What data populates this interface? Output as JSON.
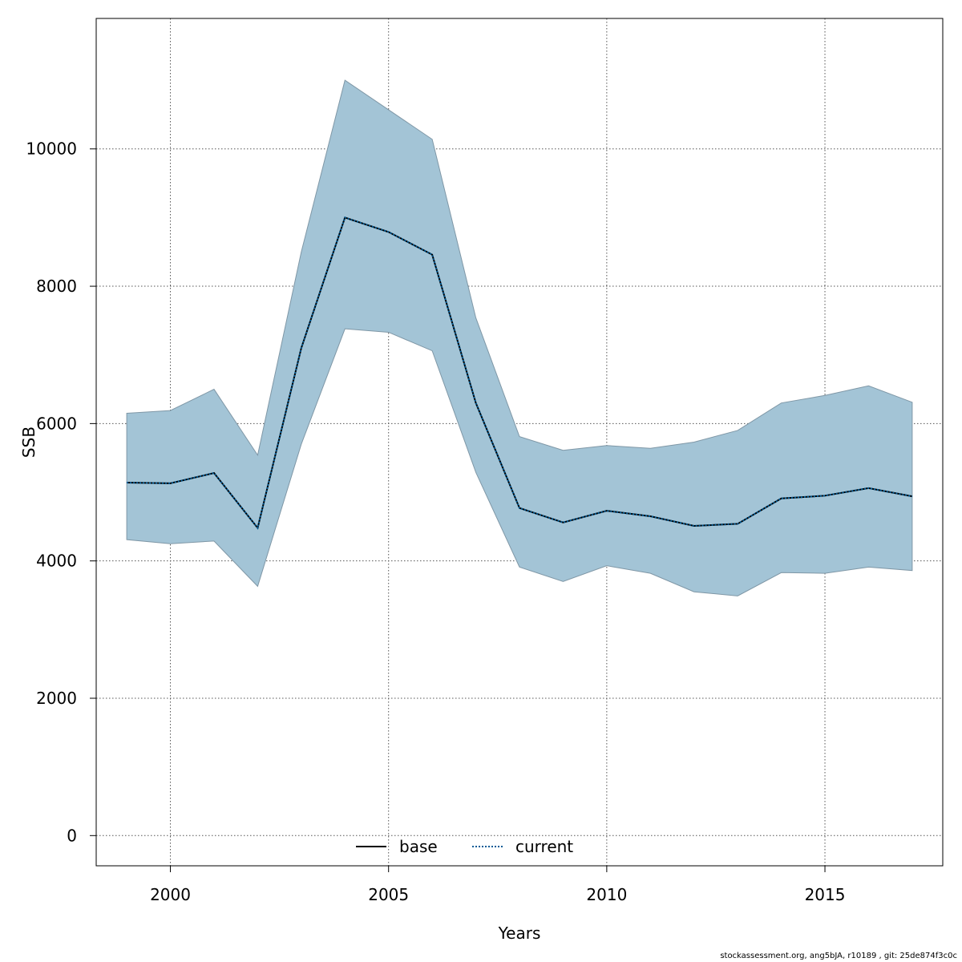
{
  "chart_data": {
    "type": "area",
    "xlabel": "Years",
    "ylabel": "SSB",
    "xlim": [
      1998.3,
      2017.7
    ],
    "ylim": [
      -440,
      11900
    ],
    "x_ticks": [
      2000,
      2005,
      2010,
      2015
    ],
    "y_ticks": [
      0,
      2000,
      4000,
      6000,
      8000,
      10000
    ],
    "grid": true,
    "legend_position": "bottom-center",
    "x": [
      1999,
      2000,
      2001,
      2002,
      2003,
      2004,
      2005,
      2006,
      2007,
      2008,
      2009,
      2010,
      2011,
      2012,
      2013,
      2014,
      2015,
      2016,
      2017
    ],
    "band": {
      "upper": [
        6150,
        6190,
        6500,
        5540,
        8500,
        11000,
        10570,
        10140,
        7540,
        5810,
        5610,
        5680,
        5640,
        5730,
        5900,
        6300,
        6410,
        6550,
        6310
      ],
      "lower": [
        4310,
        4250,
        4290,
        3630,
        5700,
        7380,
        7330,
        7060,
        5290,
        3910,
        3700,
        3930,
        3820,
        3550,
        3490,
        3830,
        3820,
        3910,
        3860
      ],
      "color": "#a3c4d6",
      "edge_color": "#7f97a6"
    },
    "series": [
      {
        "name": "base",
        "line_style": "solid",
        "color": "#000000",
        "values": [
          5140,
          5130,
          5280,
          4480,
          7100,
          9000,
          8790,
          8460,
          6300,
          4770,
          4560,
          4730,
          4650,
          4510,
          4540,
          4910,
          4950,
          5060,
          4940
        ]
      },
      {
        "name": "current",
        "line_style": "dotted",
        "color": "#005b96",
        "values": [
          5140,
          5130,
          5280,
          4480,
          7100,
          9000,
          8790,
          8460,
          6300,
          4770,
          4560,
          4730,
          4650,
          4510,
          4540,
          4910,
          4950,
          5060,
          4940
        ]
      }
    ]
  },
  "footer": {
    "text": "stockassessment.org, ang5bJA, r10189 , git: 25de874f3c0c"
  }
}
